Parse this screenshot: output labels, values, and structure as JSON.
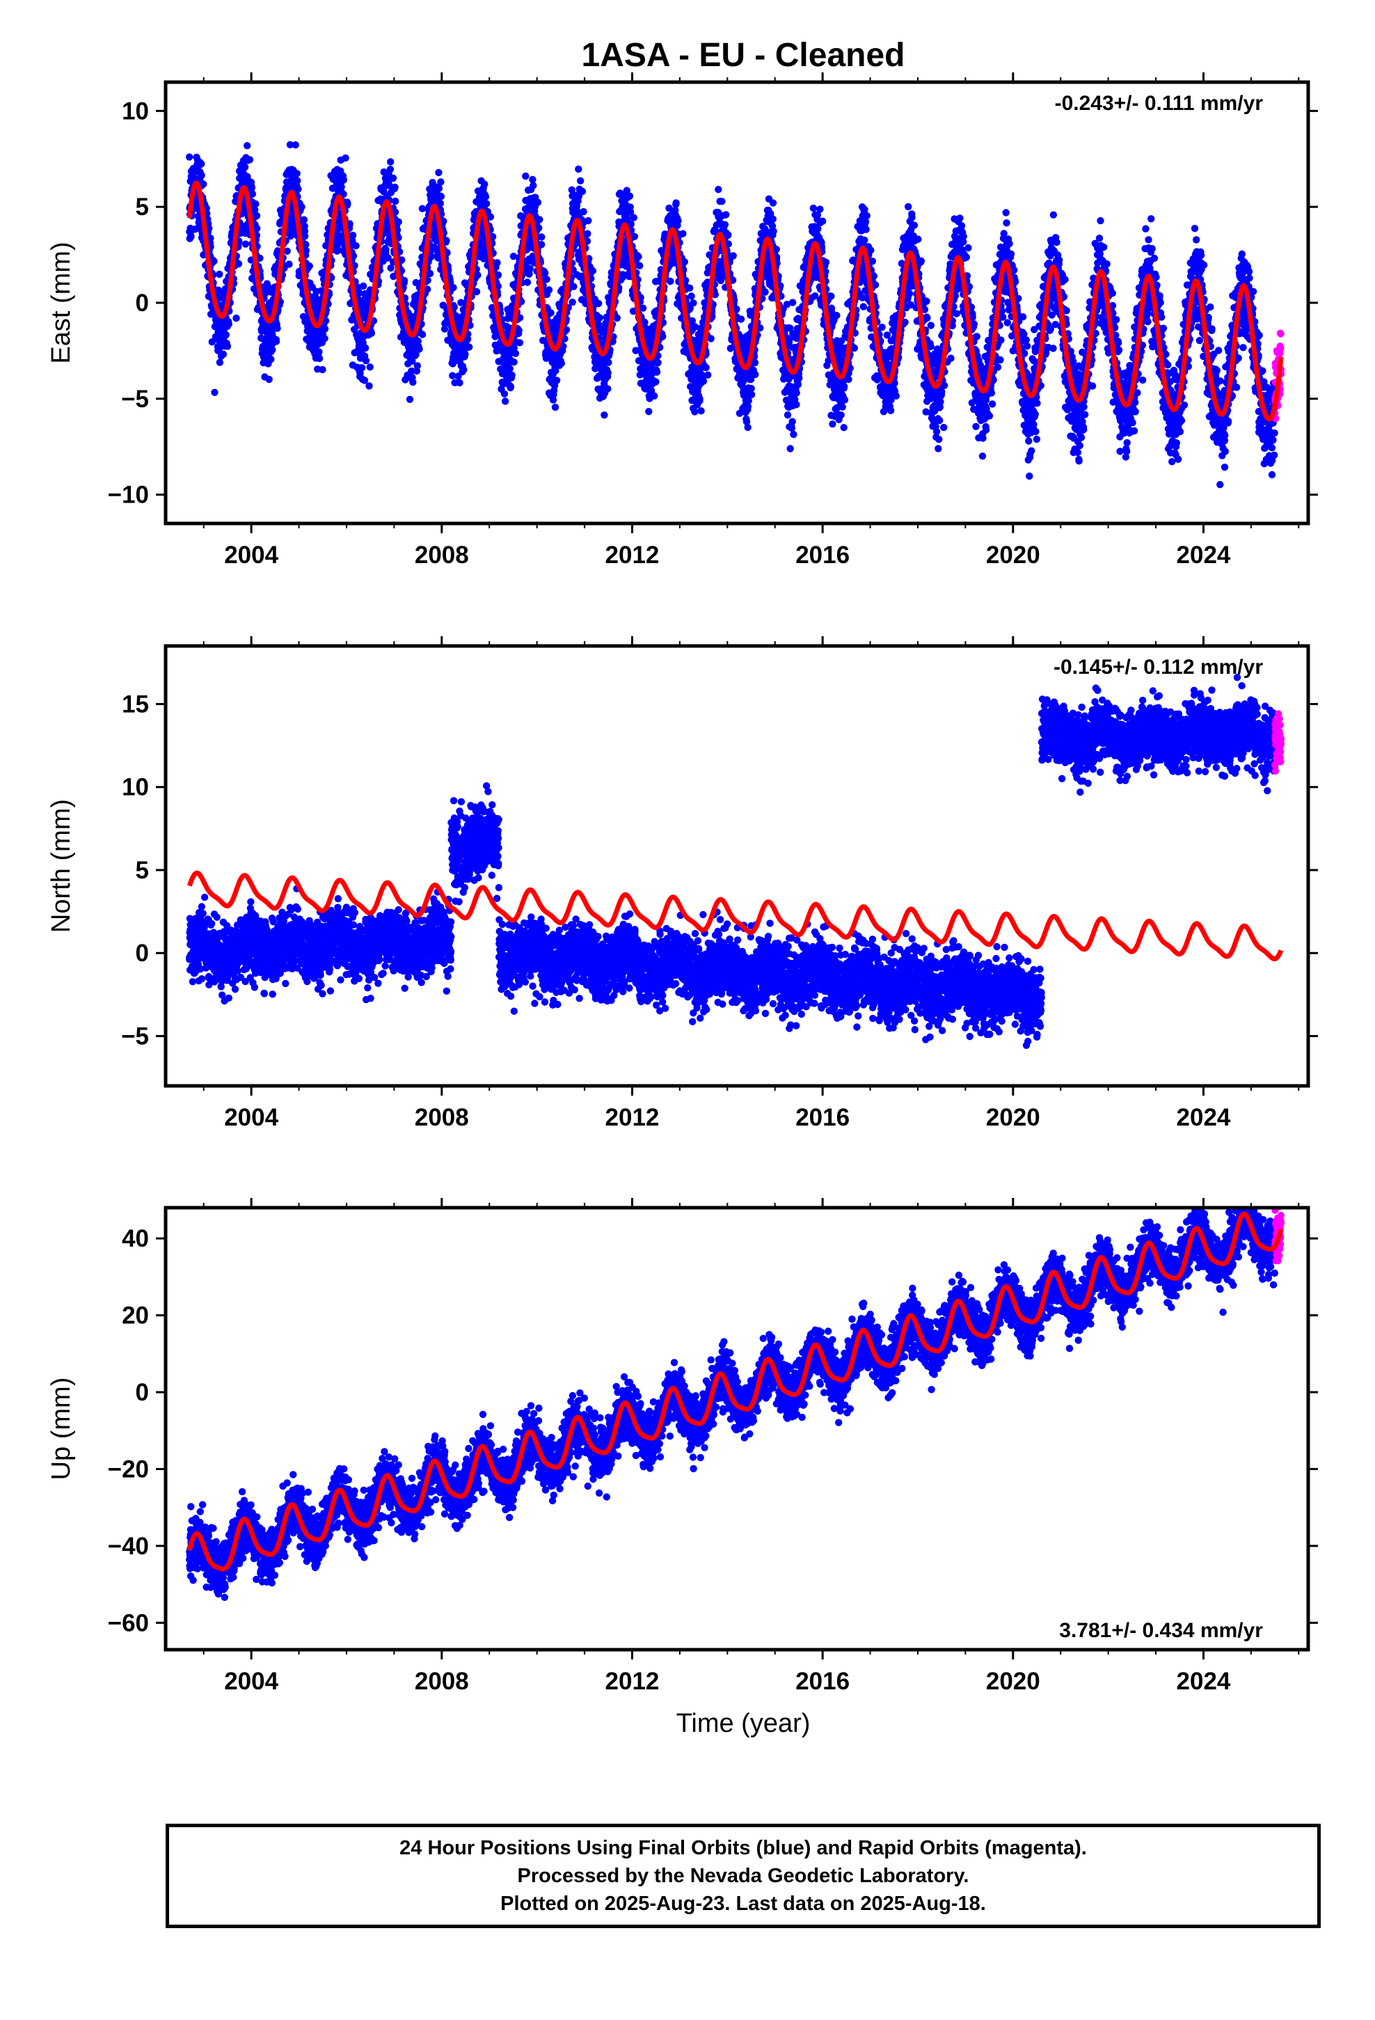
{
  "title": "1ASA  - EU - Cleaned",
  "xlabel": "Time (year)",
  "colors": {
    "final": "#0000ff",
    "rapid": "#ff00ff",
    "model": "#ff0000",
    "frame": "#000000"
  },
  "footer": {
    "line1": "24 Hour Positions Using Final Orbits (blue) and Rapid Orbits (magenta).",
    "line2": "Processed by the Nevada Geodetic Laboratory.",
    "line3": "Plotted on 2025-Aug-23. Last data on 2025-Aug-18."
  },
  "chart_data": [
    {
      "type": "scatter",
      "panel": "east",
      "ylabel": "East (mm)",
      "rate": "-0.243+/- 0.111 mm/yr",
      "rate_position": "top-right",
      "xlim": [
        2002.2,
        2026.2
      ],
      "ylim": [
        -11.5,
        11.5
      ],
      "xticks": [
        2004,
        2008,
        2012,
        2016,
        2020,
        2024
      ],
      "yticks": [
        -10,
        -5,
        0,
        5,
        10
      ],
      "ytick_labels": [
        "−10",
        "−5",
        "0",
        "5",
        "10"
      ],
      "data_start": 2002.7,
      "data_end": 2025.63,
      "rapid_start": 2025.5,
      "segments": [
        {
          "start": 2002.7,
          "end": 2025.63,
          "offset": 2.5,
          "slope": -0.243,
          "ref": 2002.7,
          "amp": 3.5,
          "noise": 1.5
        }
      ],
      "model": {
        "offset": 2.5,
        "slope": -0.243,
        "ref": 2002.7,
        "amp": 3.4,
        "annual_phase": 0.6,
        "semi_amp": 0.4
      },
      "model_end": 2025.63
    },
    {
      "type": "scatter",
      "panel": "north",
      "ylabel": "North (mm)",
      "rate": "-0.145+/- 0.112 mm/yr",
      "rate_position": "top-right",
      "xlim": [
        2002.2,
        2026.2
      ],
      "ylim": [
        -8,
        18.5
      ],
      "xticks": [
        2004,
        2008,
        2012,
        2016,
        2020,
        2024
      ],
      "yticks": [
        -5,
        0,
        5,
        10,
        15
      ],
      "ytick_labels": [
        "−5",
        "0",
        "5",
        "10",
        "15"
      ],
      "data_start": 2002.7,
      "data_end": 2025.63,
      "rapid_start": 2025.5,
      "segments": [
        {
          "start": 2002.7,
          "end": 2008.2,
          "offset": 0.2,
          "slope": 0.1,
          "ref": 2002.7,
          "amp": 0.5,
          "noise": 1.2
        },
        {
          "start": 2008.2,
          "end": 2009.2,
          "offset": 6.5,
          "slope": 0.0,
          "ref": 2008.2,
          "amp": 0.5,
          "noise": 1.4
        },
        {
          "start": 2009.2,
          "end": 2020.6,
          "offset": 0.0,
          "slope": -0.22,
          "ref": 2009.2,
          "amp": 0.5,
          "noise": 1.3
        },
        {
          "start": 2020.6,
          "end": 2025.63,
          "offset": 13.0,
          "slope": 0.0,
          "ref": 2020.6,
          "amp": 0.4,
          "noise": 1.2
        }
      ],
      "model": {
        "offset": 3.8,
        "slope": -0.145,
        "ref": 2002.7,
        "amp": 0.85,
        "annual_phase": 0.3,
        "semi_amp": 0.25
      },
      "model_end": 2025.63
    },
    {
      "type": "scatter",
      "panel": "up",
      "ylabel": "Up (mm)",
      "rate": "3.781+/- 0.434 mm/yr",
      "rate_position": "bottom-right",
      "xlim": [
        2002.2,
        2026.2
      ],
      "ylim": [
        -67,
        48
      ],
      "xticks": [
        2004,
        2008,
        2012,
        2016,
        2020,
        2024
      ],
      "yticks": [
        -60,
        -40,
        -20,
        0,
        20,
        40
      ],
      "ytick_labels": [
        "−60",
        "−40",
        "−20",
        "0",
        "20",
        "40"
      ],
      "data_start": 2002.7,
      "data_end": 2025.63,
      "rapid_start": 2025.5,
      "segments": [
        {
          "start": 2002.7,
          "end": 2025.63,
          "offset": -44.0,
          "slope": 3.781,
          "ref": 2002.7,
          "amp": 5.0,
          "noise": 4.5
        }
      ],
      "model": {
        "offset": -44.0,
        "slope": 3.781,
        "ref": 2002.7,
        "amp": 5.5,
        "annual_phase": 0.55,
        "semi_amp": 1.2
      },
      "model_end": 2025.63
    }
  ]
}
